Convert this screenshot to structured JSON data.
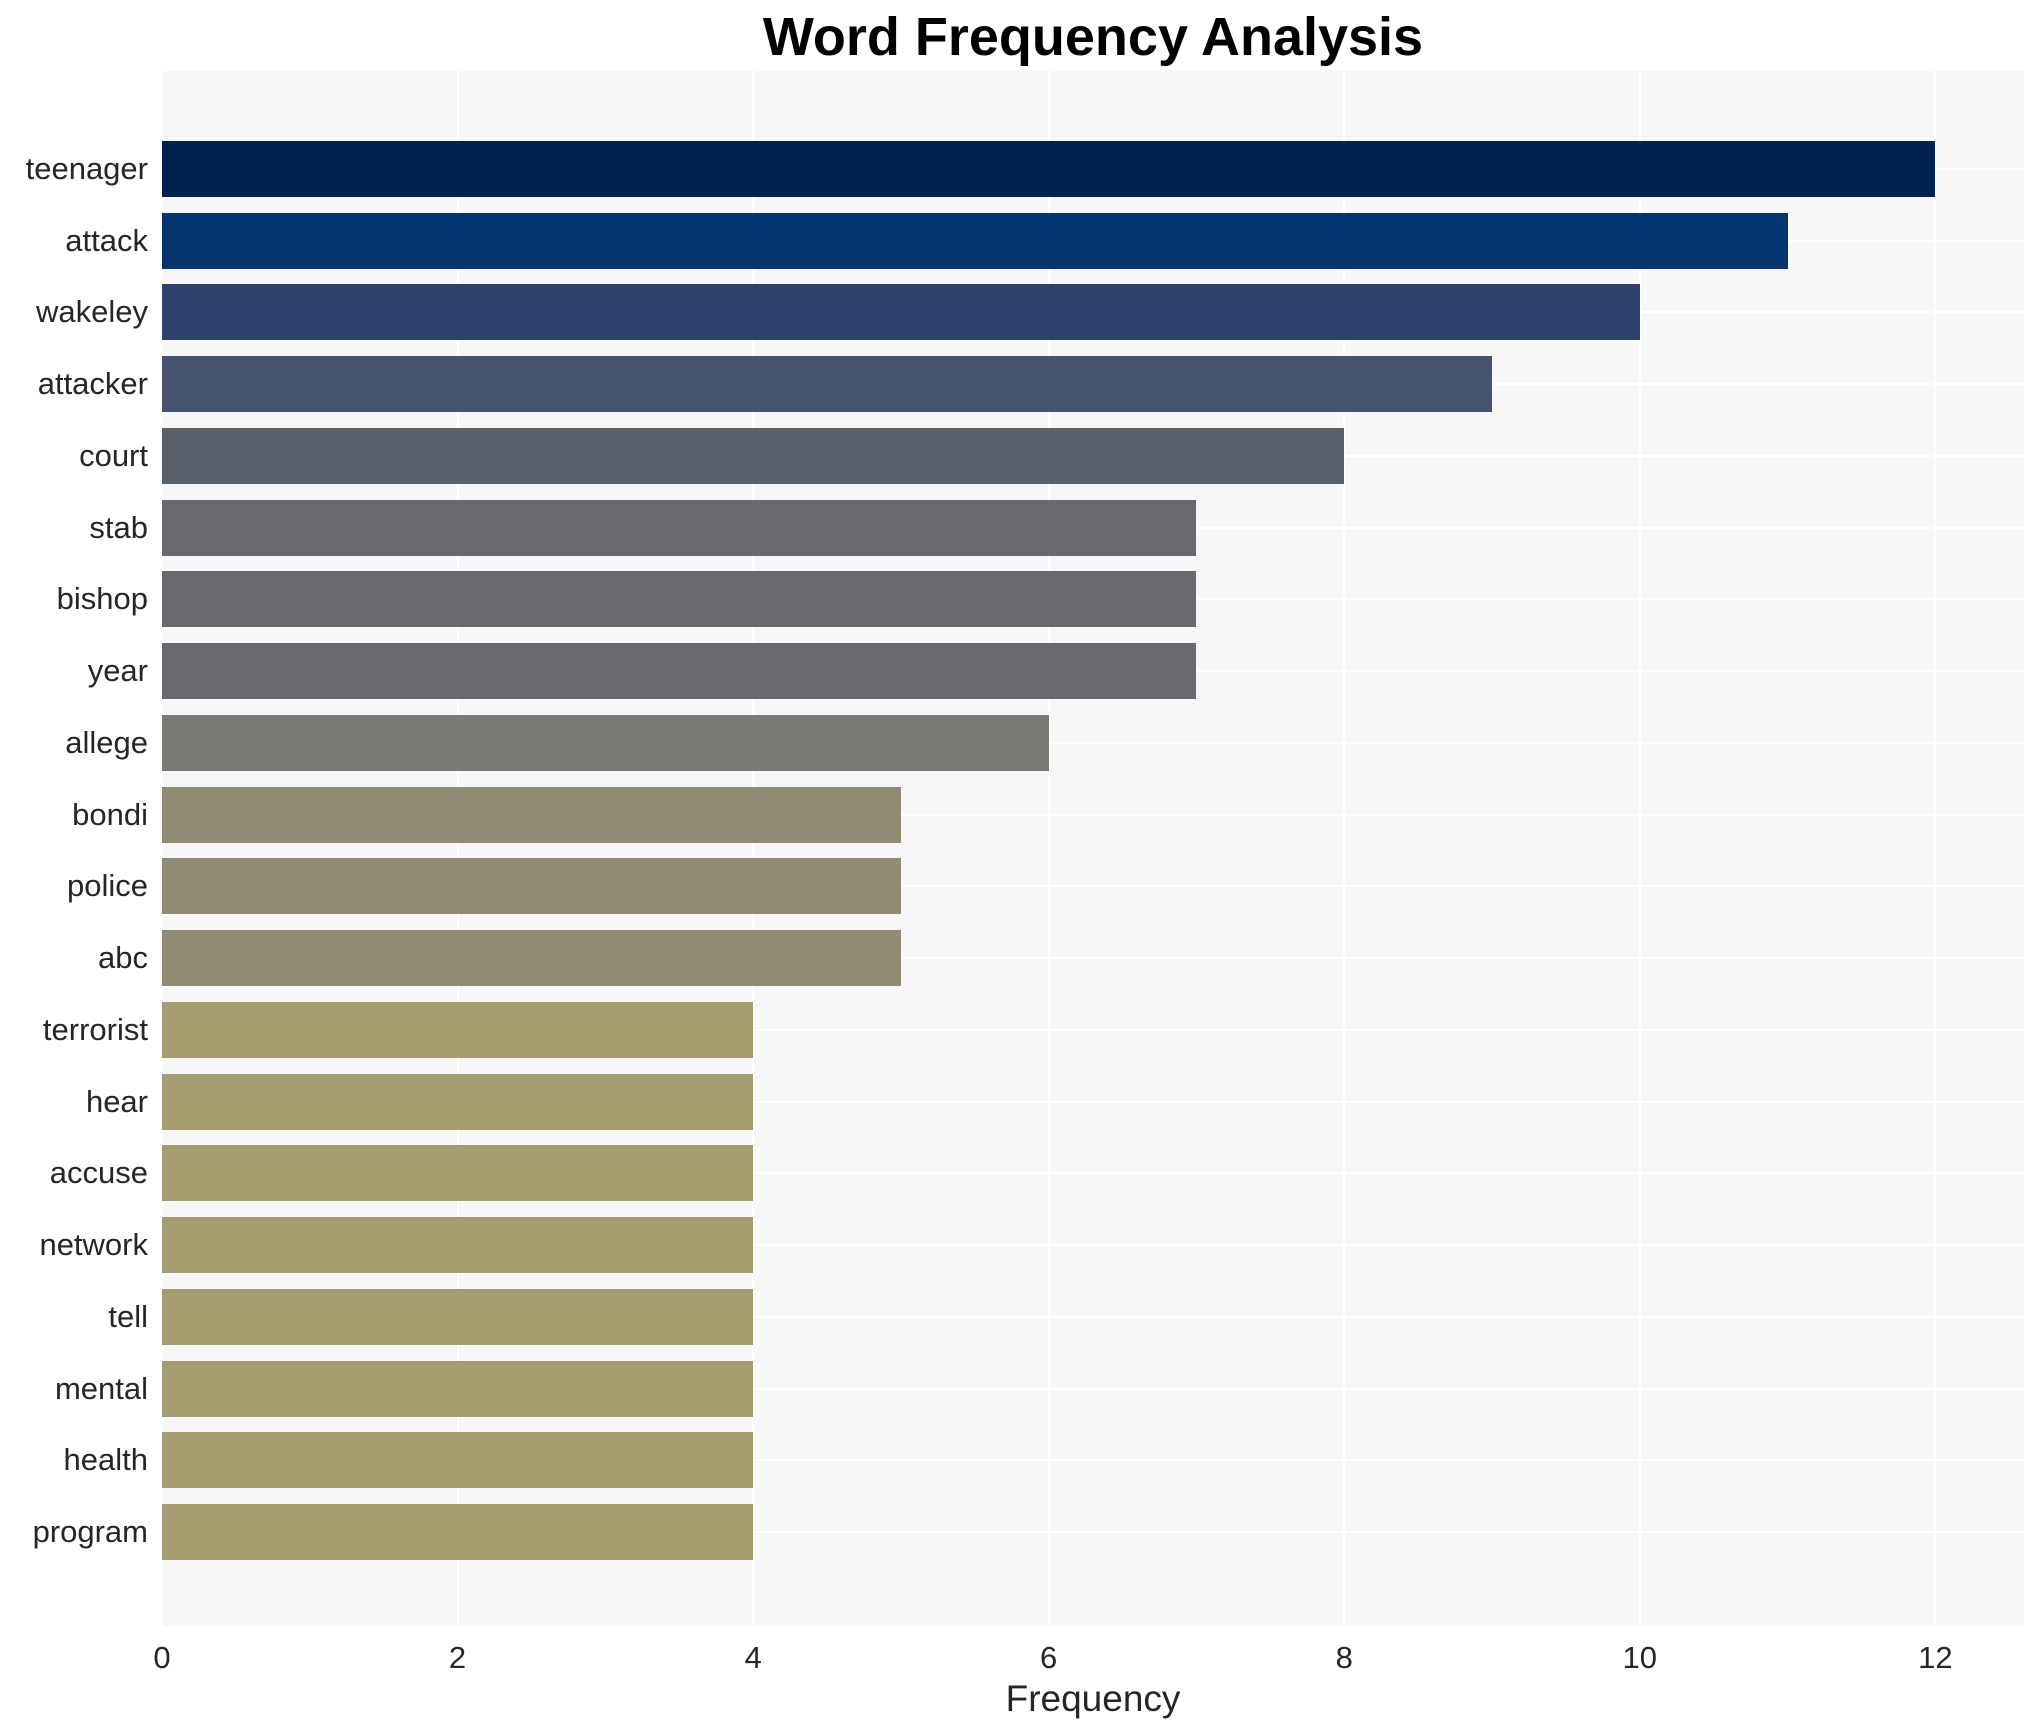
{
  "title": "Word Frequency Analysis",
  "axis": {
    "xlabel": "Frequency"
  },
  "colors": {
    "plot_background": "#f7f7f8",
    "gridline": "#ffffff",
    "title_text": "#000000",
    "tick_text": "#262626"
  },
  "chart_data": {
    "type": "bar",
    "orientation": "horizontal",
    "title": "Word Frequency Analysis",
    "xlabel": "Frequency",
    "ylabel": "",
    "categories": [
      "teenager",
      "attack",
      "wakeley",
      "attacker",
      "court",
      "stab",
      "bishop",
      "year",
      "allege",
      "bondi",
      "police",
      "abc",
      "terrorist",
      "hear",
      "accuse",
      "network",
      "tell",
      "mental",
      "health",
      "program"
    ],
    "values": [
      12,
      11,
      10,
      9,
      8,
      7,
      7,
      7,
      6,
      5,
      5,
      5,
      4,
      4,
      4,
      4,
      4,
      4,
      4,
      4
    ],
    "bar_colors": [
      "#00224f",
      "#04356f",
      "#2d416c",
      "#46536e",
      "#5a5f6c",
      "#696a70",
      "#696a70",
      "#696a70",
      "#7b7a77",
      "#918b74",
      "#918b74",
      "#918b74",
      "#a59c70",
      "#a59c70",
      "#a59c70",
      "#a59c70",
      "#a59c70",
      "#a59c70",
      "#a59c70",
      "#a59c70"
    ],
    "xlim": [
      0,
      12.6
    ],
    "x_ticks": [
      0,
      2,
      4,
      6,
      8,
      10,
      12
    ],
    "grid": "on",
    "legend": "none",
    "colormap": "cividis"
  }
}
